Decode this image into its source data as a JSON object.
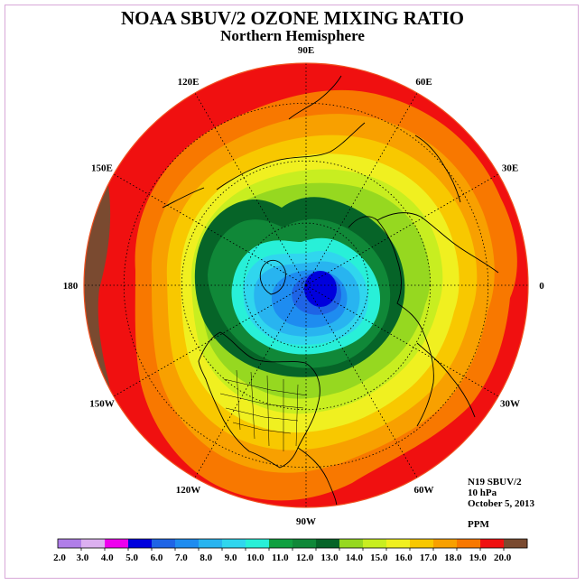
{
  "title": "NOAA SBUV/2 OZONE MIXING RATIO",
  "subtitle": "Northern Hemisphere",
  "info": {
    "instrument": "N19 SBUV/2",
    "level": "10 hPa",
    "date": "October 5, 2013",
    "units": "PPM"
  },
  "longitude_labels": [
    {
      "text": "90E",
      "lon": 90
    },
    {
      "text": "60E",
      "lon": 60
    },
    {
      "text": "30E",
      "lon": 30
    },
    {
      "text": "0",
      "lon": 0
    },
    {
      "text": "30W",
      "lon": -30
    },
    {
      "text": "60W",
      "lon": -60
    },
    {
      "text": "90W",
      "lon": -90
    },
    {
      "text": "120W",
      "lon": -120
    },
    {
      "text": "150W",
      "lon": -150
    },
    {
      "text": "180",
      "lon": 180
    },
    {
      "text": "150E",
      "lon": 150
    },
    {
      "text": "120E",
      "lon": 120
    }
  ],
  "colorbar": {
    "labels": [
      "2.0",
      "3.0",
      "4.0",
      "5.0",
      "6.0",
      "7.0",
      "8.0",
      "9.0",
      "10.0",
      "11.0",
      "12.0",
      "13.0",
      "14.0",
      "15.0",
      "16.0",
      "17.0",
      "18.0",
      "19.0",
      "20.0"
    ],
    "colors": [
      "#b07ee8",
      "#dcb0f0",
      "#ee00ee",
      "#0000dd",
      "#1e64e6",
      "#1e8cf0",
      "#28b4f0",
      "#30d6ee",
      "#28f0d8",
      "#10a040",
      "#108838",
      "#066428",
      "#96d820",
      "#c8ee20",
      "#f0f020",
      "#f8c800",
      "#f8a000",
      "#f87800",
      "#f01010",
      "#7a4a30"
    ]
  },
  "colors": {
    "hemisphere_edge": "#f05020",
    "continents": "#000000",
    "grid": "#000000"
  }
}
